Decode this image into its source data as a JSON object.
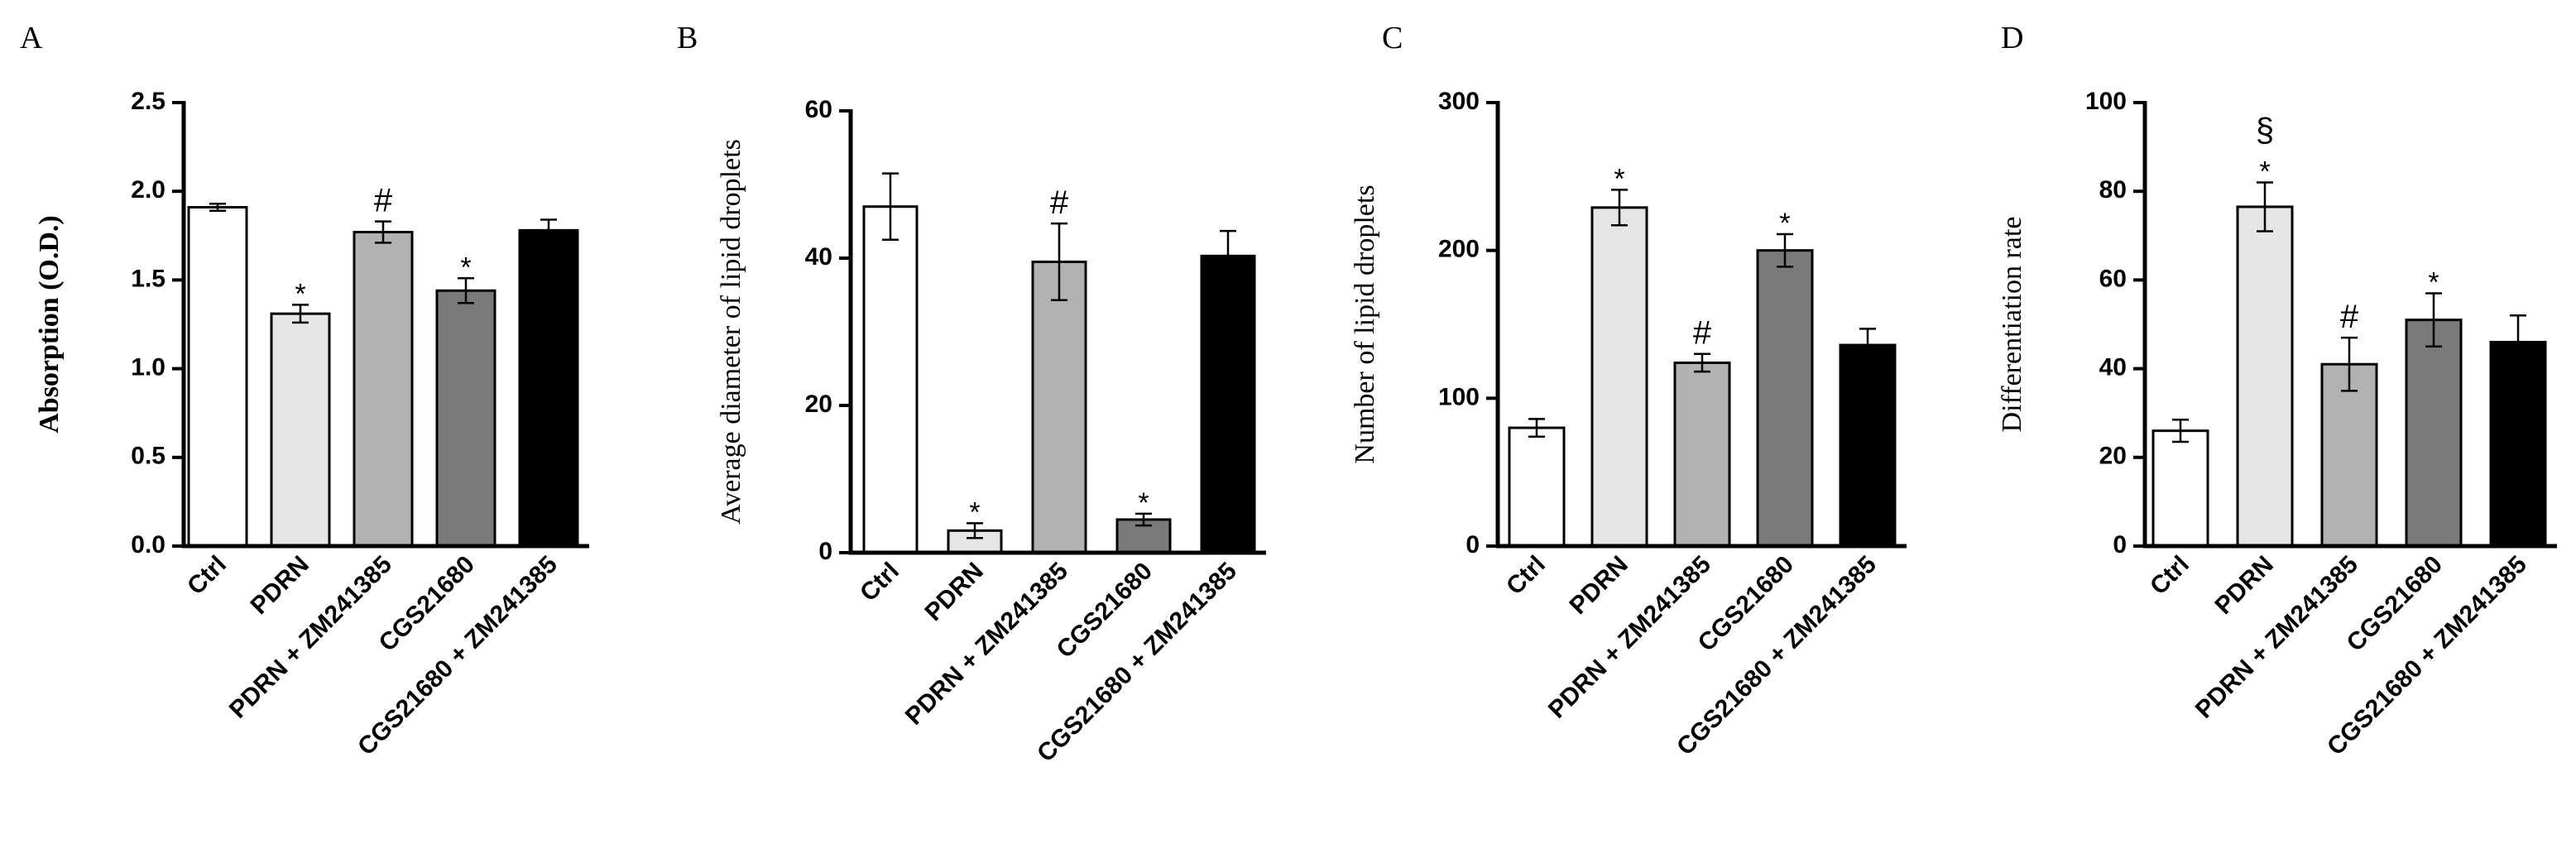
{
  "chart_data": [
    {
      "panel": "A",
      "type": "bar",
      "ylabel": "Absorption (O.D.)",
      "ylim": [
        0,
        2.5
      ],
      "yticks": [
        "0.0",
        "0.5",
        "1.0",
        "1.5",
        "2.0",
        "2.5"
      ],
      "categories": [
        "Ctrl",
        "PDRN",
        "PDRN + ZM241385",
        "CGS21680",
        "CGS21680 + ZM241385"
      ],
      "values": [
        1.91,
        1.31,
        1.77,
        1.44,
        1.78
      ],
      "errors": [
        0.02,
        0.05,
        0.06,
        0.07,
        0.06
      ],
      "annotations": [
        "",
        "*",
        "#",
        "*",
        ""
      ]
    },
    {
      "panel": "B",
      "type": "bar",
      "ylabel": "Average diameter of lipid droplets",
      "ylim": [
        0,
        60
      ],
      "yticks": [
        "0",
        "20",
        "40",
        "60"
      ],
      "categories": [
        "Ctrl",
        "PDRN",
        "PDRN + ZM241385",
        "CGS21680",
        "CGS21680 + ZM241385"
      ],
      "values": [
        47,
        3,
        39.5,
        4.5,
        40.3
      ],
      "errors": [
        4.5,
        1,
        5.2,
        0.8,
        3.4
      ],
      "annotations": [
        "",
        "*",
        "#",
        "*",
        ""
      ]
    },
    {
      "panel": "C",
      "type": "bar",
      "ylabel": "Number of lipid droplets",
      "ylim": [
        0,
        300
      ],
      "yticks": [
        "0",
        "100",
        "200",
        "300"
      ],
      "categories": [
        "Ctrl",
        "PDRN",
        "PDRN + ZM241385",
        "CGS21680",
        "CGS21680 + ZM241385"
      ],
      "values": [
        80,
        229,
        124,
        200,
        136
      ],
      "errors": [
        6,
        12,
        6,
        11,
        11
      ],
      "annotations": [
        "",
        "*",
        "#",
        "*",
        ""
      ]
    },
    {
      "panel": "D",
      "type": "bar",
      "ylabel": "Differentiation rate",
      "ylim": [
        0,
        100
      ],
      "yticks": [
        "0",
        "20",
        "40",
        "60",
        "80",
        "100"
      ],
      "categories": [
        "Ctrl",
        "PDRN",
        "PDRN + ZM241385",
        "CGS21680",
        "CGS21680 + ZM241385"
      ],
      "values": [
        26,
        76.5,
        41,
        51,
        46
      ],
      "errors": [
        2.5,
        5.5,
        6,
        6,
        6
      ],
      "annotations": [
        "",
        "§\n*",
        "#",
        "*",
        ""
      ]
    }
  ],
  "colors": {
    "bars": [
      "#ffffff",
      "#e6e6e6",
      "#b2b2b2",
      "#7a7a7a",
      "#000000"
    ],
    "axis": "#000000"
  }
}
